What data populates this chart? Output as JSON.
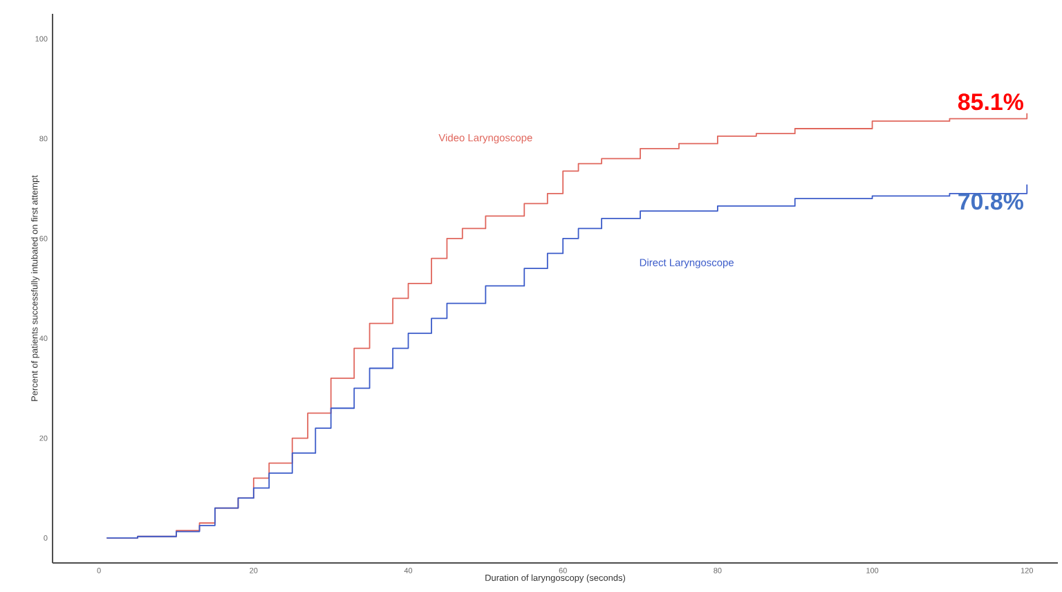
{
  "chart_data": {
    "type": "step",
    "xlabel": "Duration of laryngoscopy (seconds)",
    "ylabel": "Percent of patients successfully intubated on first attempt",
    "xlim": [
      -6,
      124
    ],
    "ylim": [
      -5,
      105
    ],
    "xticks": [
      0,
      20,
      40,
      60,
      80,
      100,
      120
    ],
    "yticks": [
      0,
      20,
      40,
      60,
      80,
      100
    ],
    "grid": false,
    "legend": false,
    "series": [
      {
        "name": "Video Laryngoscope",
        "color": "#e0665c",
        "x": [
          1,
          5,
          10,
          13,
          15,
          18,
          20,
          22,
          25,
          27,
          30,
          33,
          35,
          38,
          40,
          43,
          45,
          47,
          50,
          55,
          58,
          60,
          62,
          65,
          70,
          75,
          80,
          85,
          90,
          100,
          110,
          120
        ],
        "values": [
          0,
          0.3,
          1.5,
          3,
          6,
          8,
          12,
          15,
          20,
          25,
          32,
          38,
          43,
          48,
          51,
          56,
          60,
          62,
          64.5,
          67,
          69,
          73.5,
          75,
          76,
          78,
          79,
          80.5,
          81,
          82,
          83.5,
          84,
          85.1
        ]
      },
      {
        "name": "Direct Laryngoscope",
        "color": "#3b5bc9",
        "x": [
          1,
          5,
          10,
          13,
          15,
          18,
          20,
          22,
          25,
          28,
          30,
          33,
          35,
          38,
          40,
          43,
          45,
          50,
          55,
          58,
          60,
          62,
          65,
          70,
          80,
          90,
          100,
          110,
          120
        ],
        "values": [
          0,
          0.3,
          1.3,
          2.5,
          6,
          8,
          10,
          13,
          17,
          22,
          26,
          30,
          34,
          38,
          41,
          44,
          47,
          50.5,
          54,
          57,
          60,
          62,
          64,
          65.5,
          66.5,
          68,
          68.5,
          69,
          70.8
        ]
      }
    ],
    "annotations": [
      {
        "text": "85.1%",
        "x": 120,
        "y": 85.1
      },
      {
        "text": "70.8%",
        "x": 120,
        "y": 70.8
      }
    ]
  }
}
